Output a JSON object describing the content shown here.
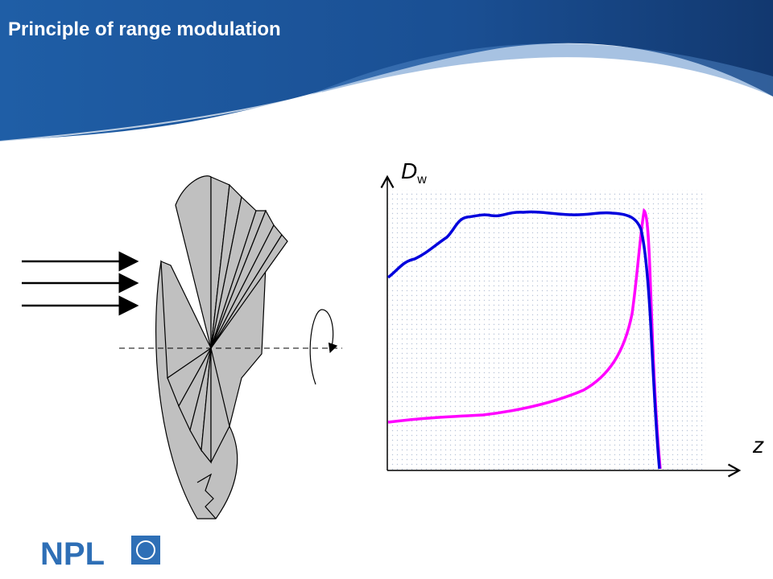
{
  "header": {
    "title": "Principle of range modulation"
  },
  "graph": {
    "y_label": "D",
    "y_label_subscript": "w",
    "x_label": "z"
  },
  "logo": {
    "text": "NPL"
  }
}
